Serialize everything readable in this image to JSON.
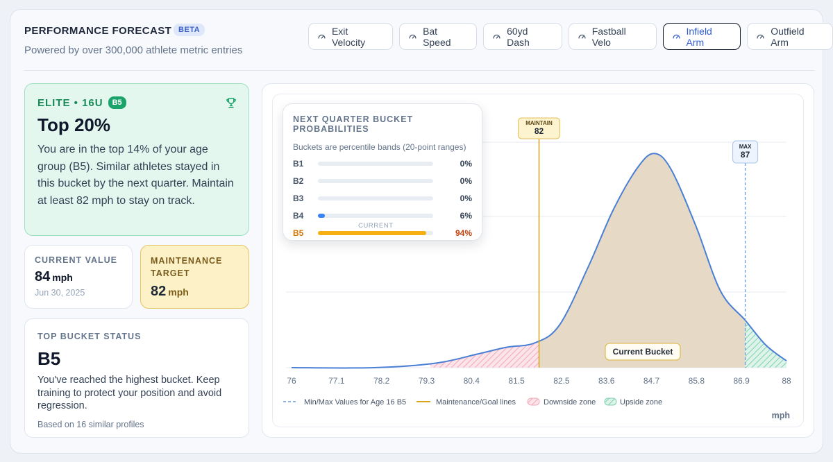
{
  "header": {
    "title": "PERFORMANCE FORECAST",
    "badge": "BETA",
    "subtitle": "Powered by over 300,000 athlete metric entries"
  },
  "tabs": [
    {
      "label": "Exit Velocity",
      "active": false
    },
    {
      "label": "Bat Speed",
      "active": false
    },
    {
      "label": "60yd Dash",
      "active": false
    },
    {
      "label": "Fastball Velo",
      "active": false
    },
    {
      "label": "Infield Arm",
      "active": true
    },
    {
      "label": "Outfield Arm",
      "active": false
    }
  ],
  "elite": {
    "tag": "ELITE • 16U",
    "bucket": "B5",
    "headline": "Top 20%",
    "text": "You are in the top 14% of your age group (B5). Similar athletes stayed in this bucket by the next quarter. Maintain at least 82 mph to stay on track."
  },
  "current": {
    "label": "CURRENT VALUE",
    "value": "84",
    "unit": "mph",
    "date": "Jun 30, 2025"
  },
  "maintenance": {
    "label": "MAINTENANCE TARGET",
    "value": "82",
    "unit": "mph"
  },
  "top_bucket": {
    "label": "TOP BUCKET STATUS",
    "value": "B5",
    "text": "You've reached the highest bucket. Keep training to protect your position and avoid regression.",
    "footnote": "Based on 16 similar profiles"
  },
  "tooltip": {
    "title": "NEXT QUARTER BUCKET PROBABILITIES",
    "subtitle": "Buckets are percentile bands (20-point ranges)",
    "current_label": "CURRENT",
    "buckets": [
      {
        "name": "B1",
        "pct": 0,
        "label": "0%",
        "current": false
      },
      {
        "name": "B2",
        "pct": 0,
        "label": "0%",
        "current": false
      },
      {
        "name": "B3",
        "pct": 0,
        "label": "0%",
        "current": false
      },
      {
        "name": "B4",
        "pct": 6,
        "label": "6%",
        "current": false
      },
      {
        "name": "B5",
        "pct": 94,
        "label": "94%",
        "current": true
      }
    ]
  },
  "chart_data": {
    "type": "area",
    "unit_label": "mph",
    "x_ticks": [
      "76",
      "77.1",
      "78.2",
      "79.3",
      "80.4",
      "81.5",
      "82.5",
      "83.6",
      "84.7",
      "85.8",
      "86.9",
      "88"
    ],
    "xlim": [
      76,
      88
    ],
    "maintain": {
      "label": "MAINTAIN",
      "value": 82
    },
    "max": {
      "label": "MAX",
      "value": 87
    },
    "current_bucket_label": "Current Bucket",
    "colors": {
      "curve": "#4a7fd4",
      "maintain": "#d9a21b",
      "max": "#6a9ad8",
      "downside": "#f3a7b6",
      "upside": "#7fd1ae",
      "fill": "#e6dac6"
    },
    "curve": [
      [
        76,
        0.0
      ],
      [
        78,
        0.0
      ],
      [
        79.5,
        0.02
      ],
      [
        80.5,
        0.06
      ],
      [
        81.2,
        0.09
      ],
      [
        81.9,
        0.11
      ],
      [
        82.5,
        0.19
      ],
      [
        83.2,
        0.45
      ],
      [
        83.8,
        0.7
      ],
      [
        84.4,
        0.89
      ],
      [
        84.8,
        0.95
      ],
      [
        85.2,
        0.88
      ],
      [
        85.8,
        0.63
      ],
      [
        86.4,
        0.34
      ],
      [
        87.0,
        0.21
      ],
      [
        87.5,
        0.1
      ],
      [
        88.0,
        0.03
      ]
    ],
    "legend": [
      {
        "label": "Min/Max Values for Age 16 B5",
        "style": "dashed-blue"
      },
      {
        "label": "Maintenance/Goal lines",
        "style": "solid-gold"
      },
      {
        "label": "Downside zone",
        "style": "pink-swatch"
      },
      {
        "label": "Upside zone",
        "style": "green-swatch"
      }
    ]
  }
}
